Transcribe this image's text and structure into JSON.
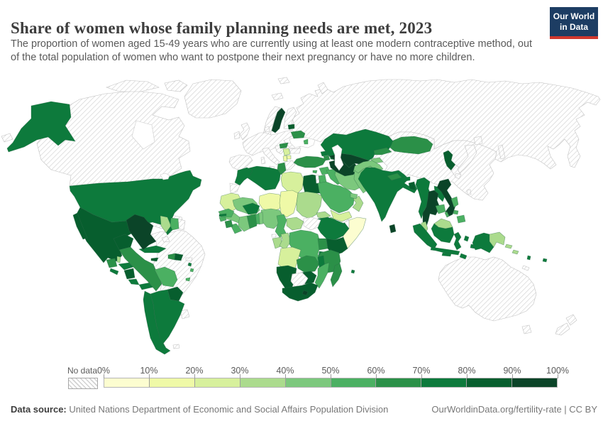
{
  "header": {
    "title": "Share of women whose family planning needs are met, 2023",
    "logo": {
      "line1": "Our World",
      "line2": "in Data",
      "bg_color": "#1d3d63",
      "accent_color": "#d0382e"
    }
  },
  "subtitle": "The proportion of women aged 15-49 years who are currently using at least one modern contraceptive method, out of the total population of women who want to postpone their next pregnancy or have no more children.",
  "legend": {
    "no_data_label": "No data",
    "tick_labels": [
      "0%",
      "10%",
      "20%",
      "30%",
      "40%",
      "50%",
      "60%",
      "70%",
      "80%",
      "90%",
      "100%"
    ],
    "bin_colors": [
      "#fcfdd0",
      "#eff9a7",
      "#d7f09c",
      "#abdb8d",
      "#7cc87d",
      "#4bb062",
      "#2b9048",
      "#0d7a3c",
      "#075e2e",
      "#0b4428"
    ]
  },
  "footer": {
    "datasource_label": "Data source:",
    "datasource_text": " United Nations Department of Economic and Social Affairs Population Division",
    "attribution": "OurWorldinData.org/fertility-rate | CC BY"
  },
  "chart_data": {
    "type": "choropleth",
    "title": "Share of women whose family planning needs are met",
    "year": 2023,
    "unit": "% of women aged 15-49 with need for family planning satisfied by modern methods",
    "legend_position": "bottom",
    "bins": [
      {
        "label": "0-10%",
        "color": "#fcfdd0"
      },
      {
        "label": "10-20%",
        "color": "#eff9a7"
      },
      {
        "label": "20-30%",
        "color": "#d7f09c"
      },
      {
        "label": "30-40%",
        "color": "#abdb8d"
      },
      {
        "label": "40-50%",
        "color": "#7cc87d"
      },
      {
        "label": "50-60%",
        "color": "#4bb062"
      },
      {
        "label": "60-70%",
        "color": "#2b9048"
      },
      {
        "label": "70-80%",
        "color": "#0d7a3c"
      },
      {
        "label": "80-90%",
        "color": "#075e2e"
      },
      {
        "label": "90-100%",
        "color": "#0b4428"
      }
    ],
    "countries_by_bin": {
      "90-100%": [
        "Colombia",
        "Sweden",
        "Uzbekistan",
        "Turkmenistan",
        "Thailand",
        "Vietnam",
        "Sri Lanka",
        "Lesotho"
      ],
      "80-90%": [
        "Mexico",
        "Nicaragua",
        "Jamaica",
        "Dominican Republic",
        "Ecuador",
        "Paraguay",
        "Estonia",
        "Egypt",
        "Kenya",
        "Zimbabwe",
        "Namibia",
        "South Africa",
        "North Korea",
        "Bangladesh"
      ],
      "70-80%": [
        "United States",
        "Cuba",
        "Honduras",
        "El Salvador",
        "Costa Rica",
        "Panama",
        "Chile",
        "Argentina",
        "Morocco",
        "Algeria",
        "Burkina Faso",
        "Ethiopia",
        "Malawi",
        "Rwanda",
        "India",
        "Bhutan",
        "Myanmar",
        "Laos",
        "Indonesia",
        "Kazakhstan",
        "Georgia",
        "Azerbaijan",
        "Fiji",
        "Vanuatu"
      ],
      "60-70%": [
        "Guatemala",
        "Haiti",
        "Peru",
        "Belarus",
        "Hungary",
        "Turkey",
        "Armenia",
        "Tunisia",
        "Sierra Leone",
        "Ghana",
        "Uganda",
        "Tanzania",
        "Zambia",
        "Madagascar",
        "Mongolia",
        "Kyrgyzstan",
        "Nepal"
      ],
      "50-60%": [
        "Bolivia",
        "Suriname",
        "Trinidad and Tobago",
        "Moldova",
        "Cyprus",
        "Syria",
        "Jordan",
        "Iraq",
        "Saudi Arabia",
        "Senegal",
        "Guinea-Bissau",
        "Liberia",
        "Togo",
        "Cameroon",
        "Democratic Republic of Congo",
        "Mozambique",
        "Cambodia",
        "Philippines"
      ],
      "40-50%": [
        "Iran",
        "United Arab Emirates",
        "Mali",
        "Guinea",
        "Cote d'Ivoire",
        "Benin",
        "Nigeria",
        "Djibouti",
        "Afghanistan",
        "Pakistan",
        "Tajikistan"
      ],
      "30-40%": [
        "Guyana",
        "Sudan",
        "Eritrea",
        "Central African Republic",
        "Congo",
        "Gabon",
        "Oman",
        "Malaysia",
        "Papua New Guinea",
        "Solomon Islands",
        "Belize"
      ],
      "20-30%": [
        "Libya",
        "Mauritania",
        "Yemen",
        "Angola",
        "Serbia"
      ],
      "10-20%": [
        "Niger",
        "Chad",
        "Albania",
        "North Macedonia"
      ],
      "0-10%": [
        "Somalia"
      ]
    },
    "no_data": [
      "Canada",
      "Greenland",
      "Brazil",
      "Venezuela",
      "French Guiana",
      "Uruguay",
      "Puerto Rico",
      "Bahamas",
      "Russia",
      "China",
      "Japan",
      "South Korea",
      "Taiwan",
      "Australia",
      "New Zealand",
      "United Kingdom",
      "Ireland",
      "France",
      "Germany",
      "Spain",
      "Portugal",
      "Italy",
      "Norway",
      "Finland",
      "Iceland",
      "Poland",
      "Romania",
      "Bulgaria",
      "Greece",
      "Israel",
      "Western Sahara",
      "South Sudan",
      "Equatorial Guinea",
      "Botswana",
      "Somaliland",
      "New Caledonia"
    ],
    "unclassified_white": [
      "Ukraine"
    ]
  },
  "map": {
    "ocean_color": "#ffffff",
    "no_data_pattern": "diagonal-hatch",
    "fills": {
      "greenland": "hatch",
      "canada": "hatch",
      "arctic-islands-1": "hatch",
      "arctic-islands-2": "hatch",
      "hudson-bay": "#ffffff",
      "great-lakes": "#ffffff",
      "alaska": "#0d7a3c",
      "usa": "#0d7a3c",
      "mexico": "#075e2e",
      "baja": "#075e2e",
      "guatemala": "#2b9048",
      "belize": "#abdb8d",
      "honduras": "#0d7a3c",
      "el-salvador": "#0d7a3c",
      "nicaragua": "#075e2e",
      "costa-rica": "#0d7a3c",
      "panama": "#0d7a3c",
      "cuba": "#0d7a3c",
      "jamaica": "#075e2e",
      "haiti": "#2b9048",
      "dominican-republic": "#075e2e",
      "puerto-rico": "hatch",
      "bahamas": "hatch",
      "trinidad": "#4bb062",
      "antilles-1": "#0d7a3c",
      "antilles-2": "#4bb062",
      "venezuela": "hatch",
      "colombia": "#0b4428",
      "guyana": "#abdb8d",
      "suriname": "#4bb062",
      "french-guiana": "hatch",
      "ecuador": "#075e2e",
      "peru": "#2b9048",
      "brazil": "hatch",
      "bolivia": "#4bb062",
      "paraguay": "#075e2e",
      "chile": "#0d7a3c",
      "argentina": "#0d7a3c",
      "uruguay": "hatch",
      "falklands": "hatch",
      "iceland": "hatch",
      "svalbard": "hatch",
      "norway": "hatch",
      "sweden": "#0b4428",
      "finland": "hatch",
      "uk": "hatch",
      "ireland": "hatch",
      "denmark": "hatch",
      "west-europe": "hatch",
      "iberia": "hatch",
      "italy": "hatch",
      "sicily": "hatch",
      "sardinia": "hatch",
      "balkans-west": "hatch",
      "serbia": "#d7f09c",
      "albania": "#eff9a7",
      "north-macedonia": "#eff9a7",
      "greece": "hatch",
      "romania": "hatch",
      "bulgaria": "hatch",
      "hungary": "#2b9048",
      "moldova": "#4bb062",
      "ukraine": "#ffffff",
      "belarus": "#2b9048",
      "estonia": "#075e2e",
      "russia": "hatch",
      "novaya-zemlya": "hatch",
      "sakhalin": "hatch",
      "chukotka-west": "hatch",
      "caspian-sea": "#ffffff",
      "turkey": "#2b9048",
      "cyprus": "#4bb062",
      "georgia": "#0d7a3c",
      "armenia": "#2b9048",
      "azerbaijan": "#0d7a3c",
      "syria": "#4bb062",
      "israel": "hatch",
      "jordan": "#4bb062",
      "iraq": "#4bb062",
      "saudi-arabia": "#4bb062",
      "yemen": "#d7f09c",
      "oman": "#abdb8d",
      "uae": "#7cc87d",
      "iran": "#7cc87d",
      "kazakhstan": "#0d7a3c",
      "uzbekistan": "#0b4428",
      "turkmenistan": "#0b4428",
      "kyrgyzstan": "#2b9048",
      "tajikistan": "#7cc87d",
      "afghanistan": "#7cc87d",
      "pakistan": "#7cc87d",
      "india": "#0d7a3c",
      "nepal": "#2b9048",
      "bhutan": "#0d7a3c",
      "bangladesh": "#075e2e",
      "sri-lanka": "#0b4428",
      "china": "hatch",
      "mongolia": "#2b9048",
      "north-korea": "#075e2e",
      "south-korea": "hatch",
      "japan-hokkaido": "hatch",
      "japan-honshu": "hatch",
      "japan-kyushu": "hatch",
      "taiwan": "hatch",
      "myanmar": "#0d7a3c",
      "thailand": "#0b4428",
      "laos": "#0d7a3c",
      "cambodia": "#4bb062",
      "vietnam": "#0b4428",
      "malaysia-peninsula": "#abdb8d",
      "malaysia-borneo": "#abdb8d",
      "sumatra": "#0d7a3c",
      "java": "#0d7a3c",
      "kalimantan": "#0d7a3c",
      "sulawesi": "#0d7a3c",
      "moluccas-1": "#0d7a3c",
      "moluccas-2": "#0d7a3c",
      "lesser-sunda": "#0d7a3c",
      "timor": "#0d7a3c",
      "philippines-luzon": "#4bb062",
      "philippines-visayas": "#4bb062",
      "philippines-mindanao": "#4bb062",
      "philippines-palawan": "#4bb062",
      "west-papua": "#0d7a3c",
      "papua-new-guinea": "#abdb8d",
      "solomon-1": "#abdb8d",
      "solomon-2": "#abdb8d",
      "vanuatu": "#0d7a3c",
      "fiji": "#0d7a3c",
      "new-caledonia": "hatch",
      "australia": "hatch",
      "tasmania": "hatch",
      "nz-north": "hatch",
      "nz-south": "hatch",
      "morocco": "#0d7a3c",
      "western-sahara": "hatch",
      "algeria": "#0d7a3c",
      "tunisia": "#2b9048",
      "libya": "#d7f09c",
      "egypt": "#075e2e",
      "mauritania": "#d7f09c",
      "mali": "#7cc87d",
      "niger": "#eff9a7",
      "chad": "#eff9a7",
      "sudan": "#abdb8d",
      "eritrea": "#abdb8d",
      "djibouti": "#7cc87d",
      "ethiopia": "#0d7a3c",
      "somaliland": "hatch",
      "somalia": "#fcfdd0",
      "senegal": "#4bb062",
      "gambia": "#0d7a3c",
      "guinea-bissau": "#4bb062",
      "guinea": "#7cc87d",
      "sierra-leone": "#2b9048",
      "liberia": "#4bb062",
      "ivory-coast": "#7cc87d",
      "ghana": "#2b9048",
      "togo": "#4bb062",
      "benin": "#7cc87d",
      "burkina-faso": "#0d7a3c",
      "nigeria": "#7cc87d",
      "cameroon": "#4bb062",
      "central-african-republic": "#abdb8d",
      "south-sudan": "hatch",
      "equatorial-guinea": "hatch",
      "gabon": "#abdb8d",
      "congo": "#abdb8d",
      "drc": "#4bb062",
      "uganda": "#2b9048",
      "kenya": "#075e2e",
      "rwanda-burundi": "#0d7a3c",
      "tanzania": "#2b9048",
      "angola": "#d7f09c",
      "zambia": "#2b9048",
      "malawi": "#0d7a3c",
      "mozambique": "#4bb062",
      "zimbabwe": "#075e2e",
      "namibia": "#075e2e",
      "botswana": "hatch",
      "south-africa": "#075e2e",
      "lesotho": "#0b4428",
      "madagascar": "#2b9048",
      "comoros": "#0d7a3c"
    }
  }
}
